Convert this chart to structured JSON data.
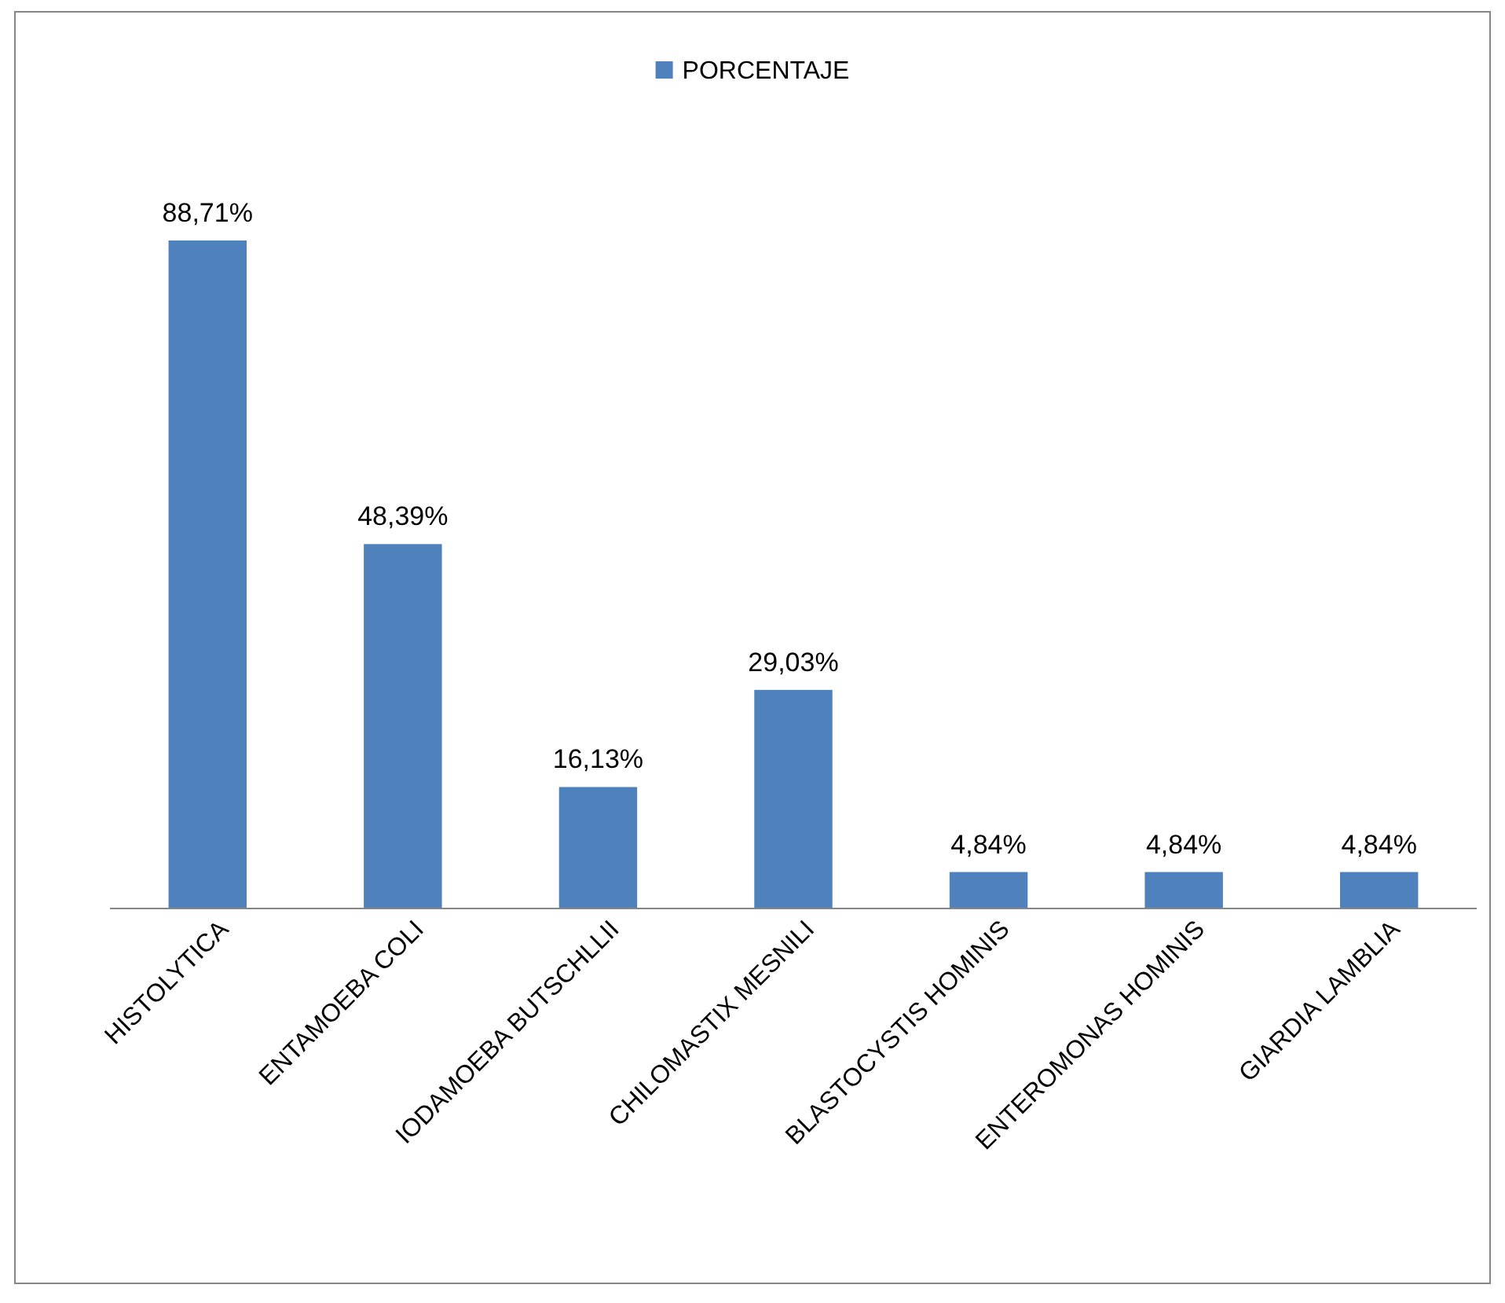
{
  "chart_data": {
    "type": "bar",
    "categories": [
      "HISTOLYTICA",
      "ENTAMOEBA COLI",
      "IODAMOEBA BUTSCHLLII",
      "CHILOMASTIX MESNILI",
      "BLASTOCYSTIS HOMINIS",
      "ENTEROMONAS HOMINIS",
      "GIARDIA LAMBLIA"
    ],
    "series": [
      {
        "name": "PORCENTAJE",
        "color": "#4f81bd",
        "values": [
          88.71,
          48.39,
          16.13,
          29.03,
          4.84,
          4.84,
          4.84
        ],
        "value_labels": [
          "88,71%",
          "48,39%",
          "16,13%",
          "29,03%",
          "4,84%",
          "4,84%",
          "4,84%"
        ]
      }
    ],
    "tick_labels": "x",
    "legend": "top"
  }
}
